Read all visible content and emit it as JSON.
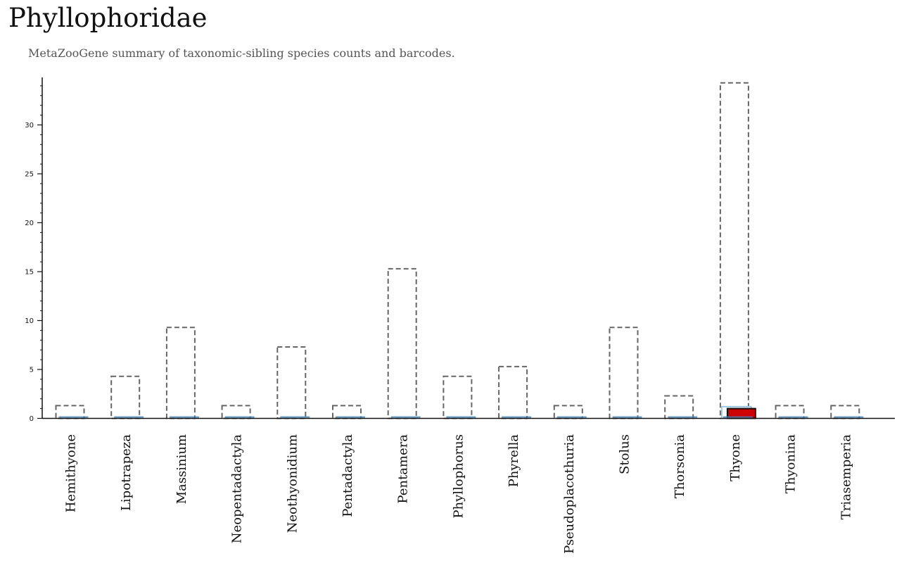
{
  "title": "Phyllophoridae",
  "subtitle": "MetaZooGene summary of taxonomic-sibling species counts and barcodes.",
  "colors": {
    "species_outline": "#666666",
    "barcode_fill": "#9ecae1",
    "barcode_line": "#4682b4",
    "highlight_fill": "#cc0000",
    "highlight_stroke": "#111111",
    "axis": "#111111"
  },
  "chart_data": {
    "type": "bar",
    "categories": [
      "Hemithyone",
      "Lipotrapeza",
      "Massinium",
      "Neopentadactyla",
      "Neothyonidium",
      "Pentadactyla",
      "Pentamera",
      "Phyllophorus",
      "Phyrella",
      "Pseudoplacothuria",
      "Stolus",
      "Thorsonia",
      "Thyone",
      "Thyonina",
      "Triasemperia"
    ],
    "series": [
      {
        "values": [
          1,
          4,
          9,
          1,
          7,
          1,
          15,
          4,
          5,
          1,
          9,
          2,
          34,
          1,
          1
        ],
        "style": "dashed-outline"
      },
      {
        "values": [
          0,
          0,
          0,
          0,
          0,
          0,
          0,
          0,
          0,
          0,
          0,
          0,
          1,
          0,
          0
        ],
        "style": "light-blue-fill"
      },
      {
        "values": [
          0,
          0,
          0,
          0,
          0,
          0,
          0,
          0,
          0,
          0,
          0,
          0,
          1,
          0,
          0
        ],
        "style": "red-highlight"
      }
    ],
    "highlight_category": "Thyone",
    "ylim": [
      0,
      35
    ],
    "yticks": [
      0,
      5,
      10,
      15,
      20,
      25,
      30
    ],
    "ytick_labels": [
      "0",
      "5",
      "10",
      "15",
      "20",
      "25",
      "30"
    ],
    "xlabel": "",
    "ylabel": "",
    "grid": false,
    "legend": "none"
  }
}
